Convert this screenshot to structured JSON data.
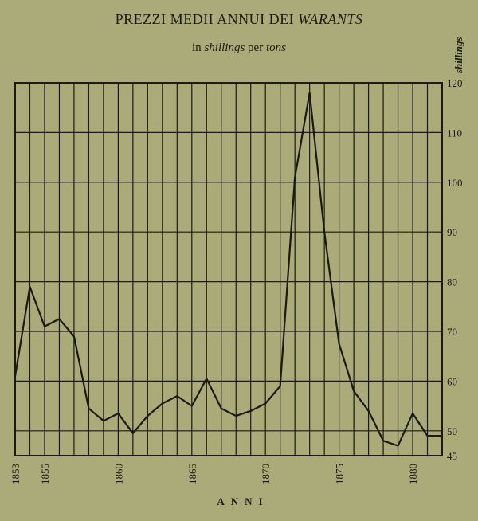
{
  "title_main": "PREZZI MEDII ANNUI DEI ",
  "title_italic": "WARANTS",
  "subtitle_pre": "in ",
  "subtitle_italic1": "shillings",
  "subtitle_mid": " per ",
  "subtitle_italic2": "tons",
  "colors": {
    "background": "#aaab79",
    "ink": "#1a1a14"
  },
  "chart_data": {
    "type": "line",
    "title": "PREZZI MEDII ANNUI DEI WARANTS",
    "subtitle": "in shillings per tons",
    "xlabel": "ANNI",
    "ylabel": "shillings",
    "xlim": [
      1853,
      1882
    ],
    "ylim": [
      45,
      120
    ],
    "x_ticks": [
      1853,
      1855,
      1860,
      1865,
      1870,
      1875,
      1880
    ],
    "y_ticks": [
      45,
      50,
      60,
      70,
      80,
      90,
      100,
      110,
      120
    ],
    "grid": true,
    "series": [
      {
        "x": [
          1853,
          1854,
          1855,
          1856,
          1857,
          1858,
          1859,
          1860,
          1861,
          1862,
          1863,
          1864,
          1865,
          1866,
          1867,
          1868,
          1869,
          1870,
          1871,
          1872,
          1873,
          1874,
          1875,
          1876,
          1877,
          1878,
          1879,
          1880,
          1881,
          1882
        ],
        "values": [
          61,
          79,
          71,
          72.5,
          69,
          54.5,
          52,
          53.5,
          49.5,
          53,
          55.5,
          57,
          55,
          60.5,
          54.5,
          53,
          54,
          55.5,
          59,
          101,
          118,
          90,
          67.5,
          58,
          54,
          48,
          47,
          53.5,
          49,
          49
        ]
      }
    ]
  }
}
